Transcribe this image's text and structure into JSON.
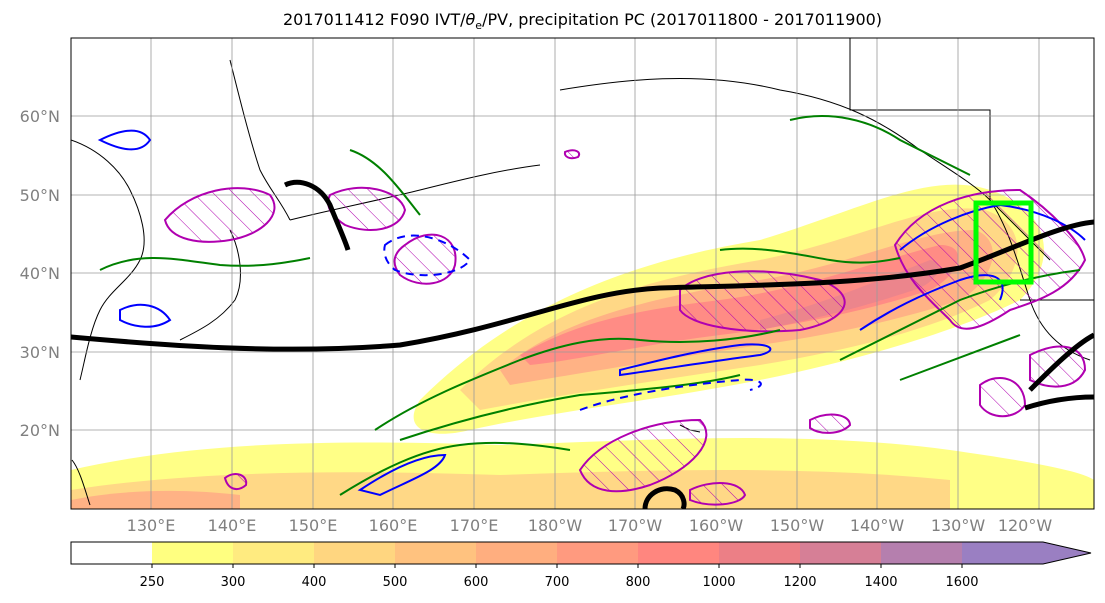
{
  "title": {
    "prefix": "2017011412 F090 IVT/",
    "theta_symbol": "θ",
    "theta_sub": "e",
    "suffix": "/PV, precipitation PC (2017011800 - 2017011900)"
  },
  "map": {
    "latitude_labels": [
      "60°N",
      "50°N",
      "40°N",
      "30°N",
      "20°N"
    ],
    "longitude_labels": [
      "130°E",
      "140°E",
      "150°E",
      "160°E",
      "170°E",
      "180°W",
      "170°W",
      "160°W",
      "150°W",
      "140°W",
      "130°W",
      "120°W"
    ],
    "gridlines": true,
    "highlight_box_color": "#00ff00",
    "ivt_fill_colors": [
      "#ffff80",
      "#ffeb80",
      "#ffd680",
      "#ffc27f",
      "#ffae7f",
      "#ff9a7f",
      "#ff867f",
      "#ec7f86",
      "#d67f96",
      "#b57fae",
      "#9a7fc2"
    ],
    "contour_colors": {
      "positive_pv": "#0000ff",
      "theta_e": "#008000",
      "precip_pc": "#b000b0",
      "jet_axis": "#000000"
    }
  },
  "colorbar": {
    "tick_labels": [
      "250",
      "300",
      "400",
      "500",
      "600",
      "700",
      "800",
      "1000",
      "1200",
      "1400",
      "1600"
    ],
    "colors": [
      "#ffffff",
      "#ffff80",
      "#ffeb80",
      "#ffd680",
      "#ffc27f",
      "#ffae7f",
      "#ff9a7f",
      "#ff867f",
      "#ec7f86",
      "#d67f96",
      "#b57fae",
      "#9a7fc2"
    ]
  }
}
